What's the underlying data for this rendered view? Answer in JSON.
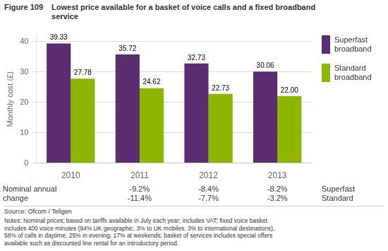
{
  "chart_data": {
    "type": "bar",
    "title": "Figure 109",
    "subtitle": "Lowest price available for a basket of voice calls and a fixed broadband\nservice",
    "ylabel": "Monthly cost (£)",
    "categories": [
      "2010",
      "2011",
      "2012",
      "2013"
    ],
    "series": [
      {
        "name": "Superfast\nbroadband",
        "color": "#5b2c6f",
        "values": [
          39.33,
          35.72,
          32.73,
          30.06
        ],
        "value_labels": [
          "39.33",
          "35.72",
          "32.73",
          "30.06"
        ]
      },
      {
        "name": "Standard\nbroadband",
        "color": "#8db600",
        "values": [
          27.78,
          24.62,
          22.73,
          22.0
        ],
        "value_labels": [
          "27.78",
          "24.62",
          "22.73",
          "22.00"
        ]
      }
    ],
    "ylim": [
      0,
      42
    ],
    "yticks": [
      0,
      10,
      20,
      30,
      40
    ],
    "grid": true,
    "legend": "right",
    "data_labels": true,
    "annotations": {
      "change_label": "Nominal annual\nchange",
      "change_categories": [
        "2011",
        "2012",
        "2013"
      ],
      "change_rows": [
        {
          "name": "Superfast",
          "values": [
            "-9.2%",
            "-8.4%",
            "-8.2%"
          ]
        },
        {
          "name": "Standard",
          "values": [
            "-11.4%",
            "-7.7%",
            "-3.2%"
          ]
        }
      ],
      "source": "Source: Ofcom / Teligen",
      "notes": "Notes: Nominal prices; based on tariffs available in July each year; includes VAT; fixed voice basket\nincludes 400 voice minutes (94% UK geographic, 3% to UK mobiles, 3% to international destinations),\n58% of calls in daytime, 25% in evening, 17% at weekends; basket of services includes special offers\navailable such as discounted line rental for an introductory period."
    }
  }
}
